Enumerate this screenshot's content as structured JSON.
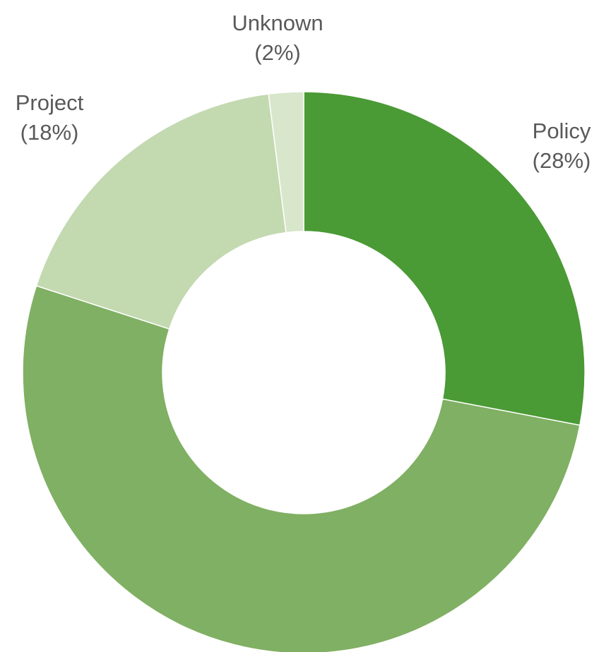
{
  "chart_data": {
    "type": "donut",
    "categories": [
      "Policy",
      null,
      "Project",
      "Unknown"
    ],
    "values": [
      28,
      52,
      18,
      2
    ],
    "value_labels": [
      "(28%)",
      null,
      "(18%)",
      "(2%)"
    ],
    "colors": [
      "#4a9a35",
      "#80b063",
      "#c3d9b0",
      "#d8e6cb"
    ]
  }
}
